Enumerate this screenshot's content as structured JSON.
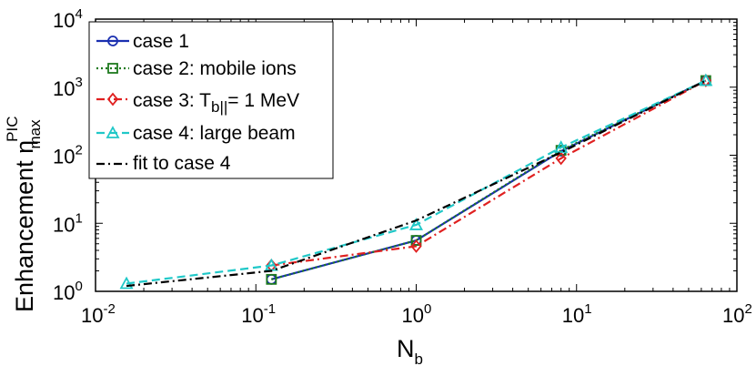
{
  "chart_data": {
    "type": "line",
    "xscale": "log",
    "yscale": "log",
    "xlim": [
      0.01,
      100
    ],
    "ylim": [
      1,
      10000
    ],
    "x_tick_labels": [
      {
        "base": "10",
        "exp": "-2"
      },
      {
        "base": "10",
        "exp": "-1"
      },
      {
        "base": "10",
        "exp": "0"
      },
      {
        "base": "10",
        "exp": "1"
      },
      {
        "base": "10",
        "exp": "2"
      }
    ],
    "y_tick_labels": [
      {
        "base": "10",
        "exp": "0"
      },
      {
        "base": "10",
        "exp": "1"
      },
      {
        "base": "10",
        "exp": "2"
      },
      {
        "base": "10",
        "exp": "3"
      },
      {
        "base": "10",
        "exp": "4"
      }
    ],
    "xlabel": {
      "main": "N",
      "sub": "b"
    },
    "ylabel": {
      "main": "Enhancement η",
      "sup": "PIC",
      "sub": "max"
    },
    "grid": false,
    "legend_position": "top-left",
    "series": [
      {
        "name": "case 1",
        "color": "#1a2fb0",
        "linestyle": "solid",
        "marker": "circle",
        "x": [
          0.125,
          1.0,
          8.0,
          64.0
        ],
        "y": [
          1.5,
          5.6,
          115,
          1250
        ]
      },
      {
        "name": "case 2: mobile ions",
        "color": "#1e7a1e",
        "linestyle": "dotted",
        "marker": "square",
        "x": [
          0.125,
          1.0,
          8.0,
          64.0
        ],
        "y": [
          1.5,
          5.6,
          118,
          1250
        ]
      },
      {
        "name_parts": {
          "pre": "case 3: T",
          "sub": "b||",
          "post": "= 1 MeV"
        },
        "color": "#e02020",
        "linestyle": "dashdot",
        "marker": "diamond",
        "x": [
          0.125,
          1.0,
          8.0,
          64.0
        ],
        "y": [
          2.4,
          4.6,
          90,
          1250
        ]
      },
      {
        "name": "case 4: large beam",
        "color": "#20c8c8",
        "linestyle": "dashed",
        "marker": "triangle",
        "x": [
          0.0156,
          0.125,
          1.0,
          8.0,
          64.0
        ],
        "y": [
          1.3,
          2.4,
          9.5,
          130,
          1250
        ]
      },
      {
        "name": "fit to case 4",
        "color": "#000000",
        "linestyle": "dashdot",
        "marker": "none",
        "x": [
          0.0156,
          0.125,
          1.0,
          8.0,
          64.0
        ],
        "y": [
          1.2,
          2.0,
          11,
          110,
          1250
        ]
      }
    ]
  }
}
